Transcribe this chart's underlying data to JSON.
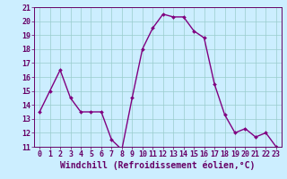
{
  "x": [
    0,
    1,
    2,
    3,
    4,
    5,
    6,
    7,
    8,
    9,
    10,
    11,
    12,
    13,
    14,
    15,
    16,
    17,
    18,
    19,
    20,
    21,
    22,
    23
  ],
  "y": [
    13.5,
    15.0,
    16.5,
    14.5,
    13.5,
    13.5,
    13.5,
    11.5,
    10.8,
    14.5,
    18.0,
    19.5,
    20.5,
    20.3,
    20.3,
    19.3,
    18.8,
    15.5,
    13.3,
    12.0,
    12.3,
    11.7,
    12.0,
    11.0
  ],
  "line_color": "#800080",
  "marker_color": "#800080",
  "bg_color": "#cceeff",
  "grid_color": "#99cccc",
  "xlabel": "Windchill (Refroidissement éolien,°C)",
  "ylim": [
    11,
    21
  ],
  "xlim": [
    -0.5,
    23.5
  ],
  "yticks": [
    11,
    12,
    13,
    14,
    15,
    16,
    17,
    18,
    19,
    20,
    21
  ],
  "xticks": [
    0,
    1,
    2,
    3,
    4,
    5,
    6,
    7,
    8,
    9,
    10,
    11,
    12,
    13,
    14,
    15,
    16,
    17,
    18,
    19,
    20,
    21,
    22,
    23
  ],
  "xlabel_fontsize": 7.0,
  "tick_fontsize": 6.0,
  "linewidth": 1.0,
  "markersize": 2.0
}
